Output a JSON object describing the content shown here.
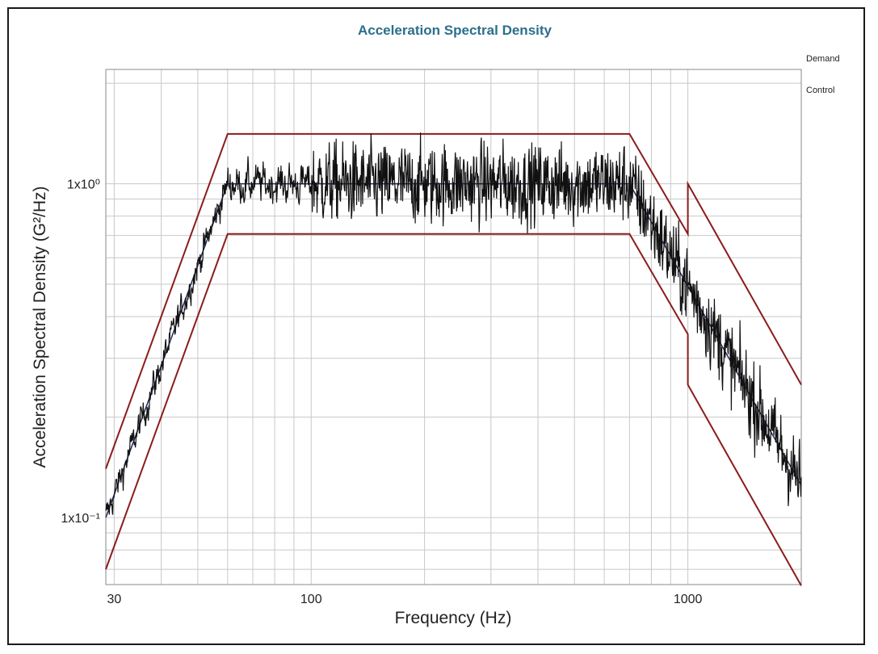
{
  "chart_data": {
    "type": "line",
    "title": "Acceleration Spectral Density",
    "xlabel": "Frequency (Hz)",
    "ylabel": "Acceleration Spectral Density (G²/Hz)",
    "x_scale": "log",
    "y_scale": "log",
    "xlim": [
      28.5,
      2000
    ],
    "ylim": [
      0.063,
      2.2
    ],
    "grid": true,
    "x_ticks": [
      {
        "value": 30,
        "label": "30"
      },
      {
        "value": 100,
        "label": "100"
      },
      {
        "value": 1000,
        "label": "1000"
      }
    ],
    "y_ticks": [
      {
        "value": 1,
        "label": "1x10⁰"
      },
      {
        "value": 0.1,
        "label": "1x10⁻¹"
      }
    ],
    "legend": {
      "position": "right",
      "entries": [
        "Demand",
        "Control"
      ]
    },
    "colors": {
      "limits": "#8b1c1c",
      "demand": "#1f2a5c",
      "control": "#111111",
      "grid": "#c8c8c8",
      "title": "#2b6f8a"
    },
    "limit_lines": [
      {
        "x": [
          28.5,
          60,
          700,
          1000,
          1000,
          2000
        ],
        "y": [
          0.14,
          1.41,
          1.41,
          0.707,
          1.0,
          0.25
        ]
      },
      {
        "x": [
          28.5,
          60,
          700,
          1000,
          1000,
          2000
        ],
        "y": [
          0.07,
          0.707,
          0.707,
          0.354,
          0.25,
          0.0625
        ]
      }
    ],
    "demand_profile": {
      "x": [
        28.5,
        60,
        700,
        2000
      ],
      "y": [
        0.1,
        1.0,
        1.0,
        0.125
      ]
    },
    "control_profile": {
      "x": [
        28.5,
        60,
        700,
        2000
      ],
      "y": [
        0.1,
        1.0,
        1.0,
        0.125
      ],
      "noise_db": 0.9
    }
  }
}
